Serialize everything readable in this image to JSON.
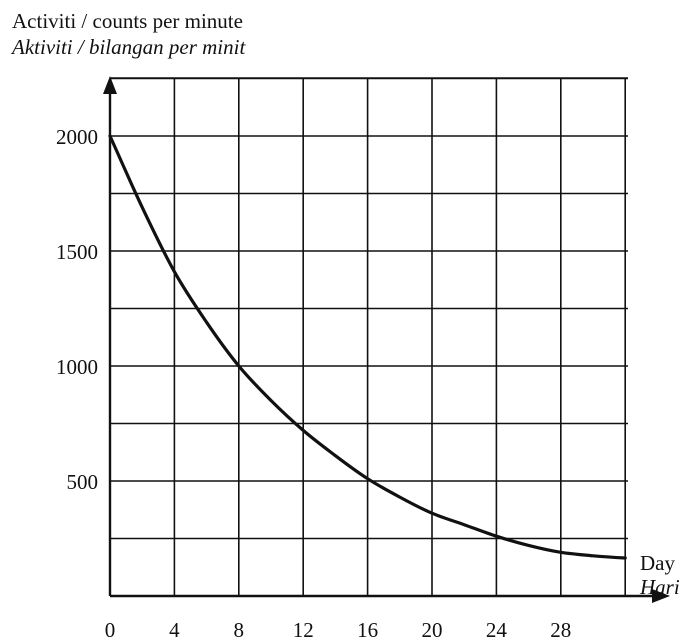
{
  "chart_data": {
    "type": "line",
    "title": "",
    "ylabel": "Activiti / counts per minute",
    "ylabel_translation": "Aktiviti / bilangan per minit",
    "xlabel": "Day",
    "xlabel_translation": "Hari",
    "xlim": [
      0,
      32
    ],
    "ylim": [
      0,
      2000
    ],
    "x_ticks": [
      0,
      4,
      8,
      12,
      16,
      20,
      24,
      28
    ],
    "y_ticks": [
      500,
      1000,
      1500,
      2000
    ],
    "grid": true,
    "legend": "none",
    "line_color": "#111111",
    "series": [
      {
        "x": [
          0,
          2,
          4,
          6,
          8,
          10,
          12,
          14,
          16,
          18,
          20,
          22,
          24,
          26,
          28,
          30,
          32
        ],
        "values": [
          2000,
          1690,
          1410,
          1190,
          1000,
          850,
          720,
          610,
          510,
          430,
          360,
          310,
          260,
          220,
          190,
          175,
          165
        ]
      }
    ]
  }
}
